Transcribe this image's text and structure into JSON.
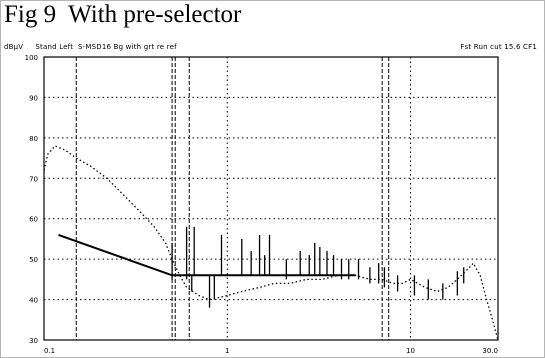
{
  "figure": {
    "title": "Fig 9  With pre-selector",
    "header_left": "dBμV     Stand Left  S-MSD16 Bg with grt re ref",
    "header_right": "Fst Run cut 15.6 CF1"
  },
  "chart_data": {
    "type": "line",
    "title": "Fig 9  With pre-selector",
    "xlabel": "",
    "ylabel": "",
    "x_scale": "log",
    "xlim": [
      0.1,
      30
    ],
    "ylim": [
      30,
      100
    ],
    "x_ticks": [
      0.1,
      1,
      10,
      30
    ],
    "x_tick_labels": [
      "0.1",
      "1",
      "10",
      "30.0"
    ],
    "y_ticks": [
      30,
      40,
      50,
      60,
      70,
      80,
      90,
      100
    ],
    "y_tick_labels": [
      "30",
      "40",
      "50",
      "60",
      "70",
      "80",
      "90",
      "100"
    ],
    "grid": true,
    "grid_style": "dotted",
    "vertical_markers": [
      {
        "x": 0.15,
        "style": "dashed"
      },
      {
        "x": 0.5,
        "style": "dashed"
      },
      {
        "x": 0.52,
        "style": "dashed"
      },
      {
        "x": 0.62,
        "style": "dashed"
      },
      {
        "x": 7.0,
        "style": "dashed"
      },
      {
        "x": 7.6,
        "style": "dashed"
      }
    ],
    "series": [
      {
        "style": "solid",
        "color": "#000000",
        "x": [
          0.12,
          0.5,
          5.0
        ],
        "y": [
          56,
          46,
          46
        ]
      },
      {
        "style": "dotted",
        "color": "#000000",
        "x": [
          0.1,
          0.105,
          0.115,
          0.13,
          0.15,
          0.18,
          0.22,
          0.27,
          0.33,
          0.4,
          0.46,
          0.5,
          0.55,
          0.6,
          0.7,
          0.8,
          0.9,
          1.0,
          1.2,
          1.5,
          1.8,
          2.2,
          2.7,
          3.3,
          4.0,
          5.0,
          6.0,
          7.0,
          8.0,
          9.0,
          10,
          12,
          14,
          16,
          18,
          20,
          22,
          24,
          26,
          28,
          30
        ],
        "y": [
          72,
          76,
          78,
          77,
          75,
          73,
          70,
          66,
          62,
          58,
          54,
          50,
          46,
          43,
          41,
          40,
          40.5,
          41,
          42,
          43,
          44,
          44,
          45,
          45,
          46,
          46,
          45,
          45,
          44,
          44,
          45,
          43,
          42,
          43,
          45,
          47,
          49,
          46,
          40,
          35,
          30
        ]
      }
    ],
    "spikes": [
      {
        "x": 0.5,
        "top": 54,
        "bottom": 45
      },
      {
        "x": 0.6,
        "top": 58,
        "bottom": 45
      },
      {
        "x": 0.64,
        "top": 46,
        "bottom": 42
      },
      {
        "x": 0.66,
        "top": 58,
        "bottom": 46
      },
      {
        "x": 0.8,
        "top": 46,
        "bottom": 38
      },
      {
        "x": 0.85,
        "top": 46,
        "bottom": 40
      },
      {
        "x": 0.93,
        "top": 56,
        "bottom": 46
      },
      {
        "x": 1.2,
        "top": 55,
        "bottom": 46
      },
      {
        "x": 1.35,
        "top": 52,
        "bottom": 46
      },
      {
        "x": 1.5,
        "top": 56,
        "bottom": 46
      },
      {
        "x": 1.6,
        "top": 51,
        "bottom": 46
      },
      {
        "x": 1.7,
        "top": 56,
        "bottom": 46
      },
      {
        "x": 2.1,
        "top": 50,
        "bottom": 45
      },
      {
        "x": 2.5,
        "top": 52,
        "bottom": 46
      },
      {
        "x": 2.8,
        "top": 51,
        "bottom": 46
      },
      {
        "x": 3.0,
        "top": 54,
        "bottom": 46
      },
      {
        "x": 3.2,
        "top": 53,
        "bottom": 46
      },
      {
        "x": 3.5,
        "top": 52,
        "bottom": 46
      },
      {
        "x": 3.8,
        "top": 51,
        "bottom": 46
      },
      {
        "x": 4.2,
        "top": 50,
        "bottom": 45
      },
      {
        "x": 4.6,
        "top": 50,
        "bottom": 45
      },
      {
        "x": 5.2,
        "top": 50,
        "bottom": 45
      },
      {
        "x": 6.0,
        "top": 48,
        "bottom": 44
      },
      {
        "x": 6.7,
        "top": 49,
        "bottom": 44
      },
      {
        "x": 7.2,
        "top": 48,
        "bottom": 43
      },
      {
        "x": 8.5,
        "top": 46,
        "bottom": 42
      },
      {
        "x": 10.5,
        "top": 46,
        "bottom": 41
      },
      {
        "x": 12.5,
        "top": 45,
        "bottom": 40
      },
      {
        "x": 15.0,
        "top": 44,
        "bottom": 40
      },
      {
        "x": 18.0,
        "top": 47,
        "bottom": 41
      },
      {
        "x": 19.5,
        "top": 48,
        "bottom": 44
      }
    ],
    "colors": {
      "trace": "#000000",
      "grid": "#000000",
      "frame": "#b4b4b4"
    }
  }
}
